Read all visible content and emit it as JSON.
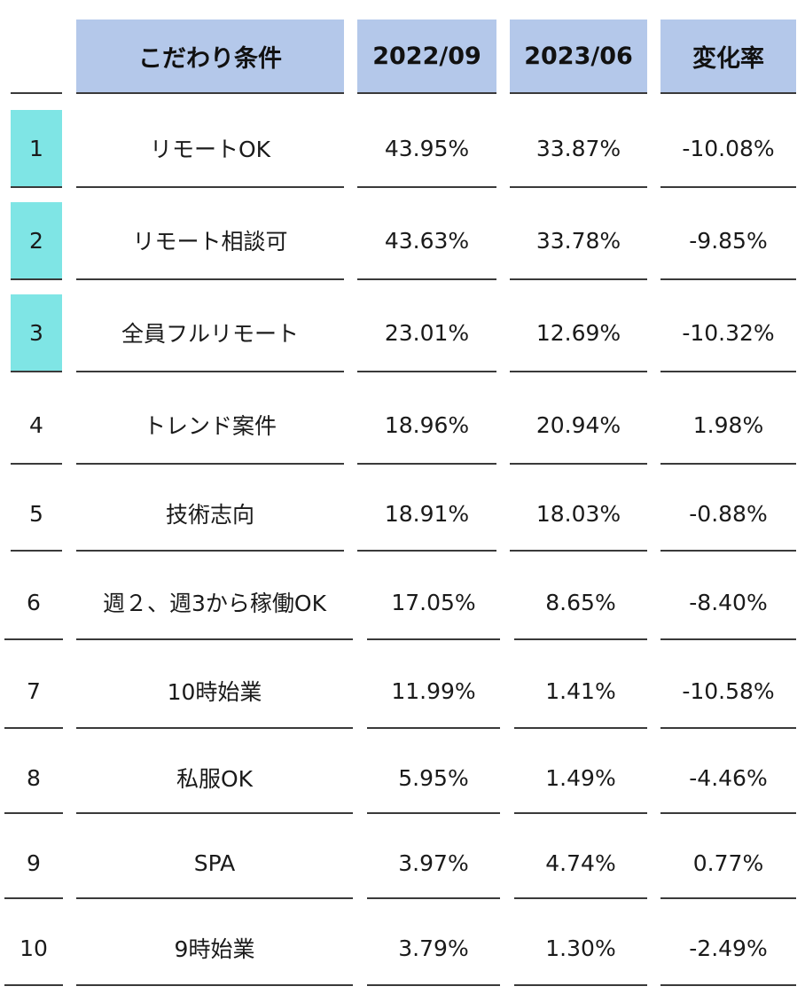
{
  "chart_data": {
    "type": "table",
    "columns": [
      "",
      "こだわり条件",
      "2022/09",
      "2023/06",
      "変化率"
    ],
    "rows": [
      {
        "rank": "1",
        "condition": "リモートOK",
        "y2022_09": "43.95%",
        "y2023_06": "33.87%",
        "change": "-10.08%",
        "highlight": true
      },
      {
        "rank": "2",
        "condition": "リモート相談可",
        "y2022_09": "43.63%",
        "y2023_06": "33.78%",
        "change": "-9.85%",
        "highlight": true
      },
      {
        "rank": "3",
        "condition": "全員フルリモート",
        "y2022_09": "23.01%",
        "y2023_06": "12.69%",
        "change": "-10.32%",
        "highlight": true
      },
      {
        "rank": "4",
        "condition": "トレンド案件",
        "y2022_09": "18.96%",
        "y2023_06": "20.94%",
        "change": "1.98%",
        "highlight": false
      },
      {
        "rank": "5",
        "condition": "技術志向",
        "y2022_09": "18.91%",
        "y2023_06": "18.03%",
        "change": "-0.88%",
        "highlight": false
      },
      {
        "rank": "6",
        "condition": "週２、週3から稼働OK",
        "y2022_09": "17.05%",
        "y2023_06": "8.65%",
        "change": "-8.40%",
        "highlight": false
      },
      {
        "rank": "7",
        "condition": "10時始業",
        "y2022_09": "11.99%",
        "y2023_06": "1.41%",
        "change": "-10.58%",
        "highlight": false
      },
      {
        "rank": "8",
        "condition": "私服OK",
        "y2022_09": "5.95%",
        "y2023_06": "1.49%",
        "change": "-4.46%",
        "highlight": false
      },
      {
        "rank": "9",
        "condition": "SPA",
        "y2022_09": "3.97%",
        "y2023_06": "4.74%",
        "change": "0.77%",
        "highlight": false
      },
      {
        "rank": "10",
        "condition": "9時始業",
        "y2022_09": "3.79%",
        "y2023_06": "1.30%",
        "change": "-2.49%",
        "highlight": false
      }
    ],
    "colors": {
      "header_bg": "#b4c8ea",
      "highlight_bg": "#7fe5e5",
      "rule": "#3a3a3a"
    }
  }
}
